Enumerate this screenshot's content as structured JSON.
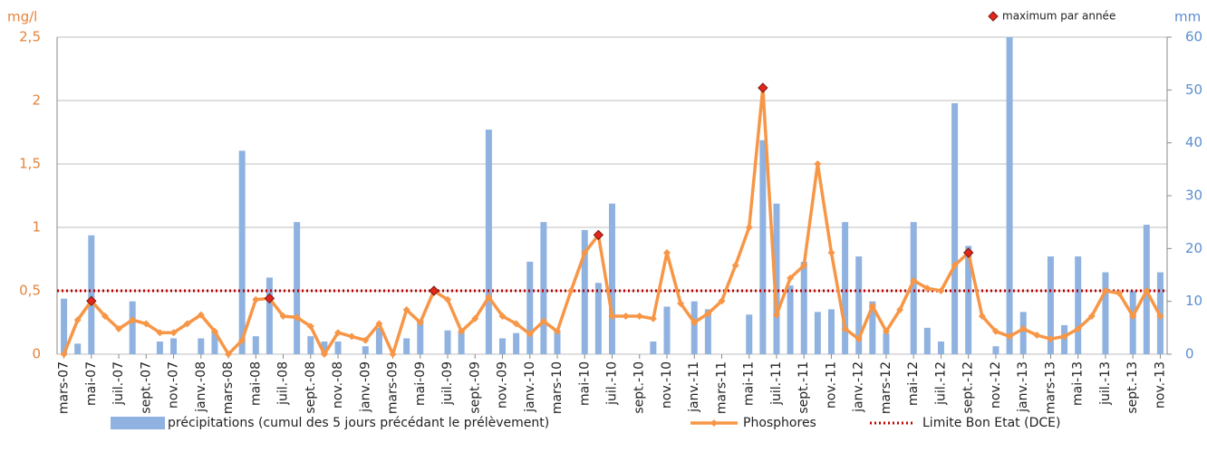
{
  "chart_data": {
    "type": "combo",
    "y_label": "mg/l",
    "y2_label": "mm",
    "categories": [
      "mars-07",
      null,
      "mai-07",
      null,
      "juil.-07",
      null,
      "sept.-07",
      null,
      "nov.-07",
      null,
      "janv.-08",
      null,
      "mars-08",
      null,
      "mai-08",
      null,
      "juil.-08",
      null,
      "sept.-08",
      null,
      "nov.-08",
      null,
      "janv.-09",
      null,
      "mars-09",
      null,
      "mai-09",
      null,
      "juil.-09",
      null,
      "sept.-09",
      null,
      "nov.-09",
      null,
      "janv.-10",
      null,
      "mars-10",
      null,
      "mai-10",
      null,
      "juil.-10",
      null,
      "sept.-10",
      null,
      "nov.-10",
      null,
      "janv.-11",
      null,
      "mars-11",
      null,
      "mai-11",
      null,
      "juil.-11",
      null,
      "sept.-11",
      null,
      "nov.-11",
      null,
      "janv.-12",
      null,
      "mars-12",
      null,
      "mai-12",
      null,
      "juil.-12",
      null,
      "sept.-12",
      null,
      "nov.-12",
      null,
      "janv.-13",
      null,
      "mars-13",
      null,
      "mai-13",
      null,
      "juil.-13",
      null,
      "sept.-13",
      null,
      "nov.-13"
    ],
    "series": [
      {
        "name": "précipitations (cumul des 5 jours précédant le prélèvement)",
        "type": "bar",
        "axis": "y2",
        "color": "#8fb2e0",
        "values": [
          10.5,
          2,
          22.5,
          null,
          null,
          10,
          null,
          2.4,
          3,
          null,
          3,
          4.5,
          null,
          38.5,
          3.4,
          14.5,
          null,
          25,
          3.4,
          2.4,
          2.4,
          null,
          1.5,
          5,
          null,
          3,
          6.5,
          null,
          4.5,
          4.3,
          null,
          42.5,
          3,
          4,
          17.5,
          25,
          4.5,
          null,
          23.5,
          13.5,
          28.5,
          null,
          null,
          2.4,
          9,
          null,
          10,
          8.5,
          null,
          null,
          7.5,
          40.5,
          28.5,
          13,
          17.5,
          8,
          8.5,
          25,
          18.5,
          10,
          4,
          null,
          25,
          5,
          2.4,
          47.5,
          20.5,
          null,
          1.5,
          60,
          8,
          null,
          18.5,
          5.5,
          18.5,
          null,
          15.5,
          null,
          12,
          24.5,
          15.5
        ]
      },
      {
        "name": "Phosphores",
        "type": "line",
        "color": "#f79646",
        "values": [
          0,
          0.27,
          0.42,
          0.3,
          0.2,
          0.27,
          0.24,
          0.17,
          0.17,
          0.24,
          0.31,
          0.18,
          0,
          0.11,
          0.43,
          0.44,
          0.3,
          0.29,
          0.22,
          0,
          0.17,
          0.14,
          0.11,
          0.24,
          0,
          0.35,
          0.25,
          0.5,
          0.43,
          0.18,
          0.28,
          0.45,
          0.3,
          0.24,
          0.16,
          0.26,
          0.18,
          0.5,
          0.8,
          0.94,
          0.3,
          0.3,
          0.3,
          0.28,
          0.8,
          0.4,
          0.25,
          0.32,
          0.42,
          0.7,
          1,
          2.1,
          0.31,
          0.6,
          0.7,
          1.5,
          0.8,
          0.2,
          0.12,
          0.38,
          0.18,
          0.35,
          0.58,
          0.52,
          0.5,
          0.7,
          0.8,
          0.3,
          0.18,
          0.14,
          0.2,
          0.15,
          0.12,
          0.14,
          0.2,
          0.3,
          0.5,
          0.48,
          0.3,
          0.5,
          0.3
        ]
      },
      {
        "name": "maximum par année",
        "type": "marker",
        "color": "#e3261c",
        "values": [
          null,
          null,
          0.42,
          null,
          null,
          null,
          null,
          null,
          null,
          null,
          null,
          null,
          null,
          null,
          null,
          0.44,
          null,
          null,
          null,
          null,
          null,
          null,
          null,
          null,
          null,
          null,
          null,
          0.5,
          null,
          null,
          null,
          null,
          null,
          null,
          null,
          null,
          null,
          null,
          null,
          0.94,
          null,
          null,
          null,
          null,
          null,
          null,
          null,
          null,
          null,
          null,
          null,
          2.1,
          null,
          null,
          null,
          null,
          null,
          null,
          null,
          null,
          null,
          null,
          null,
          null,
          null,
          null,
          0.8,
          null,
          null,
          null,
          null,
          null,
          null,
          null,
          null,
          null,
          null,
          null,
          null,
          null,
          null
        ]
      }
    ],
    "reference_line": {
      "name": "Limite Bon Etat (DCE)",
      "value": 0.5,
      "color": "#c00000"
    },
    "ylim": [
      0,
      2.5
    ],
    "yticks": [
      0,
      {
        "value": 0.5,
        "label": "0,5"
      },
      1,
      {
        "value": 1.5,
        "label": "1,5"
      },
      2,
      {
        "value": 2.5,
        "label": "2,5"
      }
    ],
    "y2lim": [
      0,
      60
    ],
    "y2ticks": [
      0,
      10,
      20,
      30,
      40,
      50,
      60
    ],
    "grid": true
  }
}
